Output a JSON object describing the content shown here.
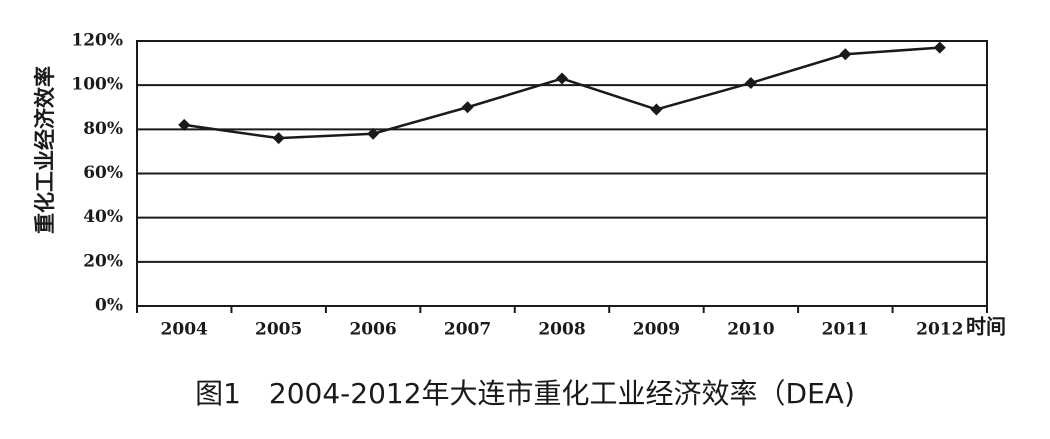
{
  "chart_data": {
    "type": "line",
    "title": "图1　2004-2012年大连市重化工业经济效率（DEA)",
    "x_label": "时间",
    "y_label": "重化工业经济效率",
    "categories": [
      "2004",
      "2005",
      "2006",
      "2007",
      "2008",
      "2009",
      "2010",
      "2011",
      "2012"
    ],
    "values": [
      82,
      76,
      78,
      90,
      103,
      89,
      101,
      114,
      117
    ],
    "color": "#1a1a1a",
    "ylim": [
      0,
      120
    ],
    "yticks": [
      {
        "value": 0,
        "label": "0%"
      },
      {
        "value": 20,
        "label": "20%"
      },
      {
        "value": 40,
        "label": "40%"
      },
      {
        "value": 60,
        "label": "60%"
      },
      {
        "value": 80,
        "label": "80%"
      },
      {
        "value": 100,
        "label": "100%"
      },
      {
        "value": 120,
        "label": "120%"
      }
    ],
    "grid": true
  }
}
